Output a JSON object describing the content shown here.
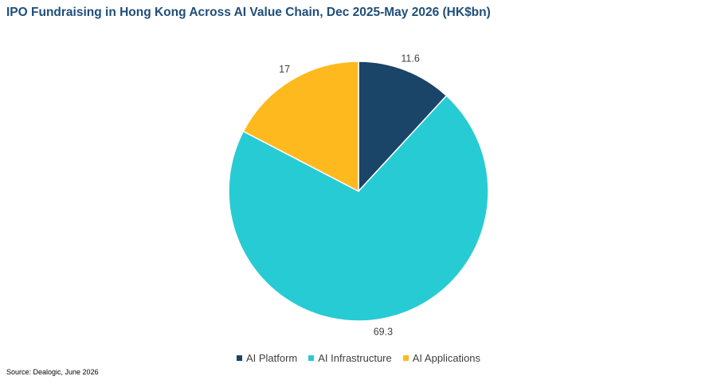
{
  "chart_data": {
    "type": "pie",
    "title": "IPO Fundraising in Hong Kong Across AI Value Chain, Dec 2025-May 2026 (HK$bn)",
    "categories": [
      "AI Platform",
      "AI Infrastructure",
      "AI Applications"
    ],
    "values": [
      11.6,
      69.3,
      17
    ],
    "data_labels": [
      "11.6",
      "69.3",
      "17"
    ],
    "colors": [
      "#1a4468",
      "#27cbd4",
      "#fdb91e"
    ],
    "legend_position": "bottom",
    "start_angle": "12 o'clock",
    "direction": "clockwise"
  },
  "source": "Source: Dealogic, June 2026"
}
